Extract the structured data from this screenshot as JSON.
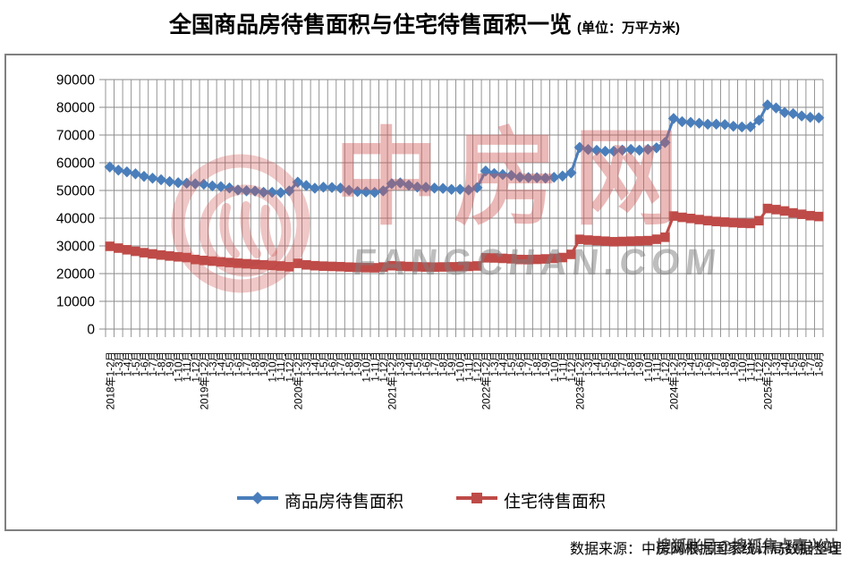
{
  "title": {
    "main": "全国商品房待售面积与住宅待售面积一览",
    "unit": "(单位：万平方米)"
  },
  "watermark": {
    "logo_text": "中房网",
    "logo_subtext": "FANGCHAN.COM"
  },
  "footer": {
    "source": "数据来源：中房网根据国家统计局数据整理",
    "watermark": "搜狐账号@搜狐焦点嘉兴站"
  },
  "chart_data": {
    "type": "line",
    "title": "全国商品房待售面积与住宅待售面积一览",
    "unit": "万平方米",
    "ylim": [
      0,
      90000
    ],
    "y_ticks": [
      0,
      10000,
      20000,
      30000,
      40000,
      50000,
      60000,
      70000,
      80000,
      90000
    ],
    "grid": "on",
    "legend_position": "bottom",
    "x_labels": [
      "2018年1-2月",
      "1-3月",
      "1-4月",
      "1-5月",
      "1-6月",
      "1-7月",
      "1-8月",
      "1-9月",
      "1-10月",
      "1-11月",
      "1-12月",
      "2019年1-2月",
      "1-3月",
      "1-4月",
      "1-5月",
      "1-6月",
      "1-7月",
      "1-8月",
      "1-9月",
      "1-10月",
      "1-11月",
      "1-12月",
      "2020年1-2月",
      "1-3月",
      "1-4月",
      "1-5月",
      "1-6月",
      "1-7月",
      "1-8月",
      "1-9月",
      "1-10月",
      "1-11月",
      "1-12月",
      "2021年1-2月",
      "1-3月",
      "1-4月",
      "1-5月",
      "1-6月",
      "1-7月",
      "1-8月",
      "1-9月",
      "1-10月",
      "1-11月",
      "1-12月",
      "2022年1-2月",
      "1-3月",
      "1-4月",
      "1-5月",
      "1-6月",
      "1-7月",
      "1-8月",
      "1-9月",
      "1-10月",
      "1-11月",
      "1-12月",
      "2023年1-2月",
      "1-3月",
      "1-4月",
      "1-5月",
      "1-6月",
      "1-7月",
      "1-8月",
      "1-9月",
      "1-10月",
      "1-11月",
      "1-12月",
      "2024年1-2月",
      "1-3月",
      "1-4月",
      "1-5月",
      "1-6月",
      "1-7月",
      "1-8月",
      "1-9月",
      "1-10月",
      "1-11月",
      "1-12月",
      "2025年1-2月",
      "1-3月",
      "1-4月",
      "1-5月",
      "1-6月",
      "1-7月",
      "1-8月"
    ],
    "series": [
      {
        "name": "商品房待售面积",
        "color": "#4a7ebb",
        "marker": "diamond",
        "values": [
          58468,
          57329,
          56726,
          56010,
          55083,
          54428,
          53873,
          53191,
          52789,
          52627,
          52414,
          52251,
          51646,
          51380,
          50928,
          50162,
          49876,
          49784,
          49346,
          49323,
          49221,
          49821,
          52987,
          51779,
          50825,
          51184,
          51083,
          50862,
          50052,
          49607,
          49492,
          49287,
          49850,
          52425,
          52726,
          51927,
          51238,
          51143,
          50864,
          50738,
          50385,
          50438,
          50178,
          51023,
          57026,
          56113,
          55735,
          55433,
          54784,
          54655,
          54605,
          54467,
          54734,
          55203,
          56366,
          65528,
          64770,
          64487,
          64120,
          64159,
          64564,
          64795,
          64537,
          64835,
          65395,
          67295,
          75969,
          74833,
          74553,
          74256,
          73894,
          73926,
          73783,
          73177,
          72909,
          72967,
          75327,
          80864,
          79786,
          78125,
          77709,
          76868,
          76386,
          76213
        ]
      },
      {
        "name": "住宅待售面积",
        "color": "#be4b48",
        "marker": "square",
        "values": [
          29850,
          29200,
          28600,
          28050,
          27550,
          27100,
          26700,
          26350,
          26050,
          25800,
          25091,
          24750,
          24500,
          24250,
          24000,
          23750,
          23550,
          23350,
          23150,
          22950,
          22750,
          22473,
          23690,
          23150,
          22850,
          22700,
          22600,
          22500,
          22350,
          22250,
          22150,
          22100,
          22379,
          22845,
          22700,
          22550,
          22450,
          22380,
          22350,
          22400,
          22450,
          22500,
          22600,
          22761,
          25699,
          25650,
          25500,
          25350,
          25100,
          25050,
          25150,
          25300,
          25500,
          25800,
          26947,
          32371,
          32100,
          31900,
          31700,
          31500,
          31600,
          31700,
          31800,
          31900,
          32400,
          33119,
          40773,
          40300,
          39900,
          39500,
          39100,
          38800,
          38600,
          38400,
          38200,
          38100,
          39088,
          43500,
          43100,
          42600,
          41900,
          41400,
          40900,
          40600
        ]
      }
    ]
  }
}
